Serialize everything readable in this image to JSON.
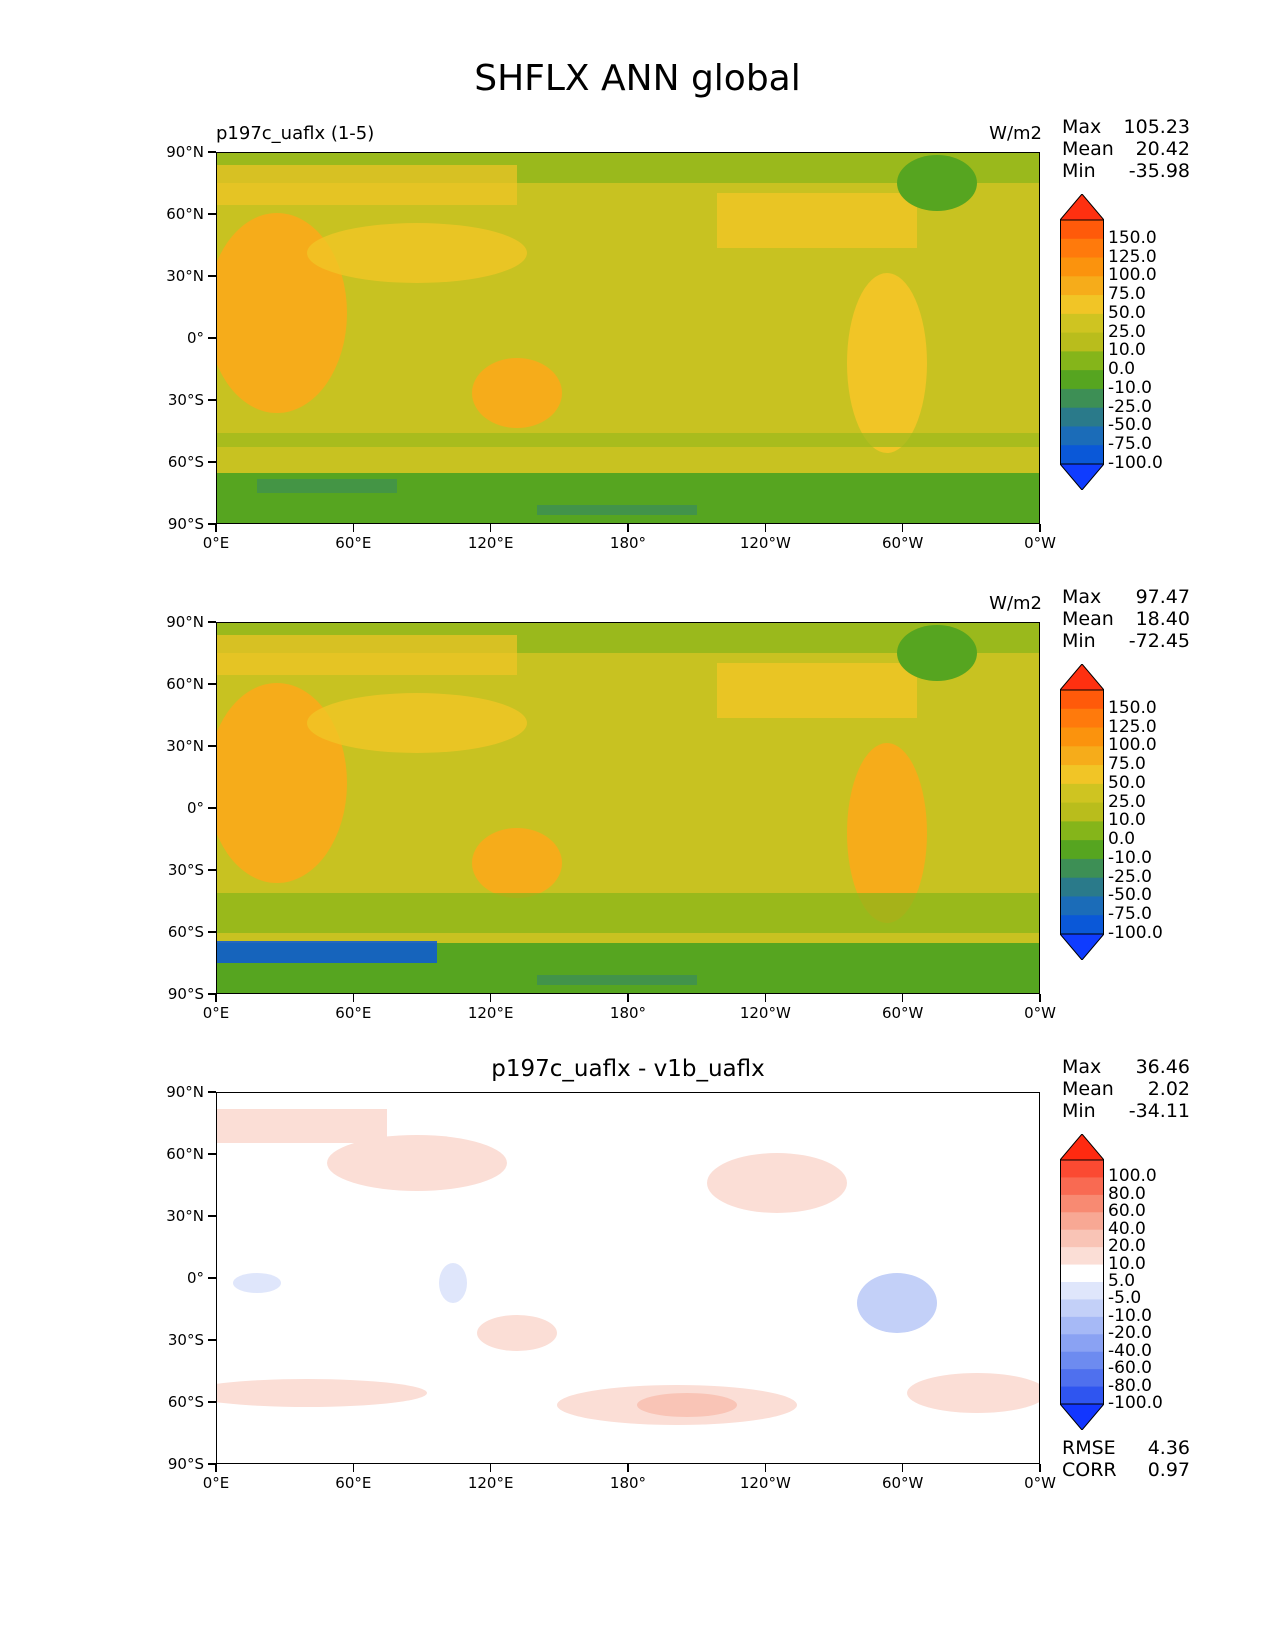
{
  "title": "SHFLX ANN global",
  "xticks": [
    "0°E",
    "60°E",
    "120°E",
    "180°",
    "120°W",
    "60°W",
    "0°W"
  ],
  "yticks": [
    "90°N",
    "60°N",
    "30°N",
    "0°",
    "30°S",
    "60°S",
    "90°S"
  ],
  "panels": [
    {
      "title_left": "p197c_uaflx (1-5)",
      "title_center": "",
      "units": "W/m2",
      "stats": {
        "max_label": "Max",
        "max": "105.23",
        "mean_label": "Mean",
        "mean": "20.42",
        "min_label": "Min",
        "min": "-35.98"
      },
      "colorbar": {
        "labels": [
          "150.0",
          "125.0",
          "100.0",
          "75.0",
          "50.0",
          "25.0",
          "10.0",
          "0.0",
          "-10.0",
          "-25.0",
          "-50.0",
          "-75.0",
          "-100.0"
        ],
        "colors": [
          "#ff3010",
          "#ff5a0a",
          "#ff7a0c",
          "#fb930d",
          "#f6ac1a",
          "#f1c526",
          "#cfc421",
          "#b9bd1c",
          "#85b51a",
          "#56a520",
          "#3d8f55",
          "#2a7a8a",
          "#1b6cb8",
          "#0a58d8",
          "#0f3cff"
        ]
      }
    },
    {
      "title_left": "",
      "title_center": "",
      "units": "W/m2",
      "stats": {
        "max_label": "Max",
        "max": "97.47",
        "mean_label": "Mean",
        "mean": "18.40",
        "min_label": "Min",
        "min": "-72.45"
      },
      "colorbar": {
        "labels": [
          "150.0",
          "125.0",
          "100.0",
          "75.0",
          "50.0",
          "25.0",
          "10.0",
          "0.0",
          "-10.0",
          "-25.0",
          "-50.0",
          "-75.0",
          "-100.0"
        ],
        "colors": [
          "#ff3010",
          "#ff5a0a",
          "#ff7a0c",
          "#fb930d",
          "#f6ac1a",
          "#f1c526",
          "#cfc421",
          "#b9bd1c",
          "#85b51a",
          "#56a520",
          "#3d8f55",
          "#2a7a8a",
          "#1b6cb8",
          "#0a58d8",
          "#0f3cff"
        ]
      }
    },
    {
      "title_left": "",
      "title_center": "p197c_uaflx - v1b_uaflx",
      "units": "",
      "stats": {
        "max_label": "Max",
        "max": "36.46",
        "mean_label": "Mean",
        "mean": "2.02",
        "min_label": "Min",
        "min": "-34.11"
      },
      "colorbar": {
        "labels": [
          "100.0",
          "80.0",
          "60.0",
          "40.0",
          "20.0",
          "10.0",
          "5.0",
          "-5.0",
          "-10.0",
          "-20.0",
          "-40.0",
          "-60.0",
          "-80.0",
          "-100.0"
        ],
        "colors": [
          "#ff2a10",
          "#fb4a32",
          "#f96a52",
          "#f88a72",
          "#f8a894",
          "#f9c4b6",
          "#fbded6",
          "#ffffff",
          "#dfe6fb",
          "#c3d0f8",
          "#a6b9f6",
          "#8aa2f3",
          "#6d8bf0",
          "#4f70ee",
          "#2f55f0",
          "#1236ff"
        ]
      },
      "metrics": {
        "rmse_label": "RMSE",
        "rmse": "4.36",
        "corr_label": "CORR",
        "corr": "0.97"
      }
    }
  ]
}
